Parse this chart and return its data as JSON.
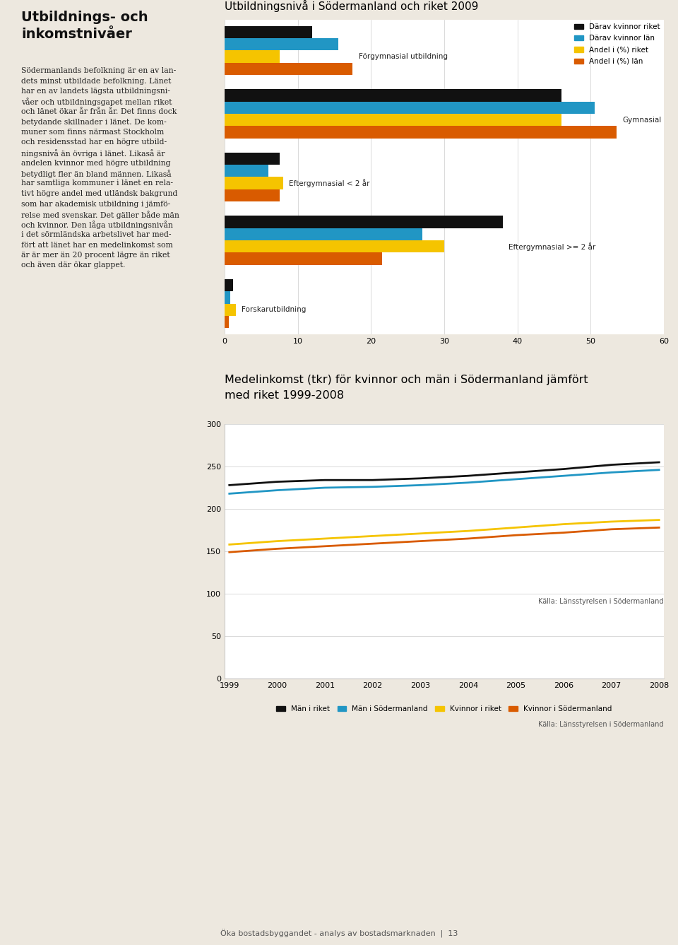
{
  "bar_title": "Utbildningsnivå i Södermanland och riket 2009",
  "bar_categories": [
    "Forskarutbildning",
    "Eftergymnasial >= 2 år",
    "Eftergymnasial < 2 år",
    "Gymnasial",
    "Förgymnasial utbildning"
  ],
  "bar_series_labels": [
    "Därav kvinnor riket",
    "Därav kvinnor län",
    "Andel i (%) riket",
    "Andel i (%) län"
  ],
  "bar_colors": [
    "#111111",
    "#2196c4",
    "#f5c400",
    "#d95b00"
  ],
  "bar_data": [
    [
      1.2,
      0.8,
      1.5,
      0.6
    ],
    [
      38.0,
      27.0,
      30.0,
      21.5
    ],
    [
      7.5,
      6.0,
      8.0,
      7.5
    ],
    [
      46.0,
      50.5,
      46.0,
      53.5
    ],
    [
      12.0,
      15.5,
      7.5,
      17.5
    ]
  ],
  "bar_xlim": [
    0,
    60
  ],
  "bar_xticks": [
    0,
    10,
    20,
    30,
    40,
    50,
    60
  ],
  "line_title_line1": "Medelinkomst (tkr) för kvinnor och män i Södermanland jämfört",
  "line_title_line2": "med riket 1999-2008",
  "line_series_labels": [
    "Män i riket",
    "Män i Södermanland",
    "Kvinnor i riket",
    "Kvinnor i Södermanland"
  ],
  "line_colors": [
    "#111111",
    "#2196c4",
    "#f5c400",
    "#d95b00"
  ],
  "line_years": [
    1999,
    2000,
    2001,
    2002,
    2003,
    2004,
    2005,
    2006,
    2007,
    2008
  ],
  "line_data": [
    [
      228,
      232,
      234,
      234,
      236,
      239,
      243,
      247,
      252,
      255
    ],
    [
      218,
      222,
      225,
      226,
      228,
      231,
      235,
      239,
      243,
      246
    ],
    [
      158,
      162,
      165,
      168,
      171,
      174,
      178,
      182,
      185,
      187
    ],
    [
      149,
      153,
      156,
      159,
      162,
      165,
      169,
      172,
      176,
      178
    ]
  ],
  "line_ylim": [
    0,
    300
  ],
  "line_yticks": [
    0,
    50,
    100,
    150,
    200,
    250,
    300
  ],
  "source_text": "Källa: Länsstyrelsen i Södermanland",
  "background_color": "#ffffff",
  "page_bg": "#ede8df",
  "left_text_title": "Utbildnings- och\ninkomstnivåer",
  "left_text_body_lines": [
    "Södermanlands befolkning är en av lan-",
    "dets minst utbildade befolkning. Länet",
    "har en av landets lägsta utbildningsni-",
    "våer och utbildningsgapet mellan riket",
    "och länet ökar år från år. Det finns dock",
    "betydande skillnader i länet. De kom-",
    "muner som finns närmast Stockholm",
    "och residensstad har en högre utbild-",
    "ningsnivå än övriga i länet. Likaså är",
    "andelen kvinnor med högre utbildning",
    "betydligt fler än bland männen. Likaså",
    "har samtliga kommuner i länet en rela-",
    "tivt högre andel med utländsk bakgrund",
    "som har akademisk utbildning i jämfö-",
    "relse med svenskar. Det gäller både män",
    "och kvinnor. Den låga utbildningsnivån",
    "i det sörmländska arbetslivet har med-",
    "fört att länet har en medelinkomst som",
    "är är mer än 20 procent lägre än riket",
    "och även där ökar glappet."
  ],
  "footer_text": "Öka bostadsbyggandet - analys av bostadsmarknaden  |  13"
}
